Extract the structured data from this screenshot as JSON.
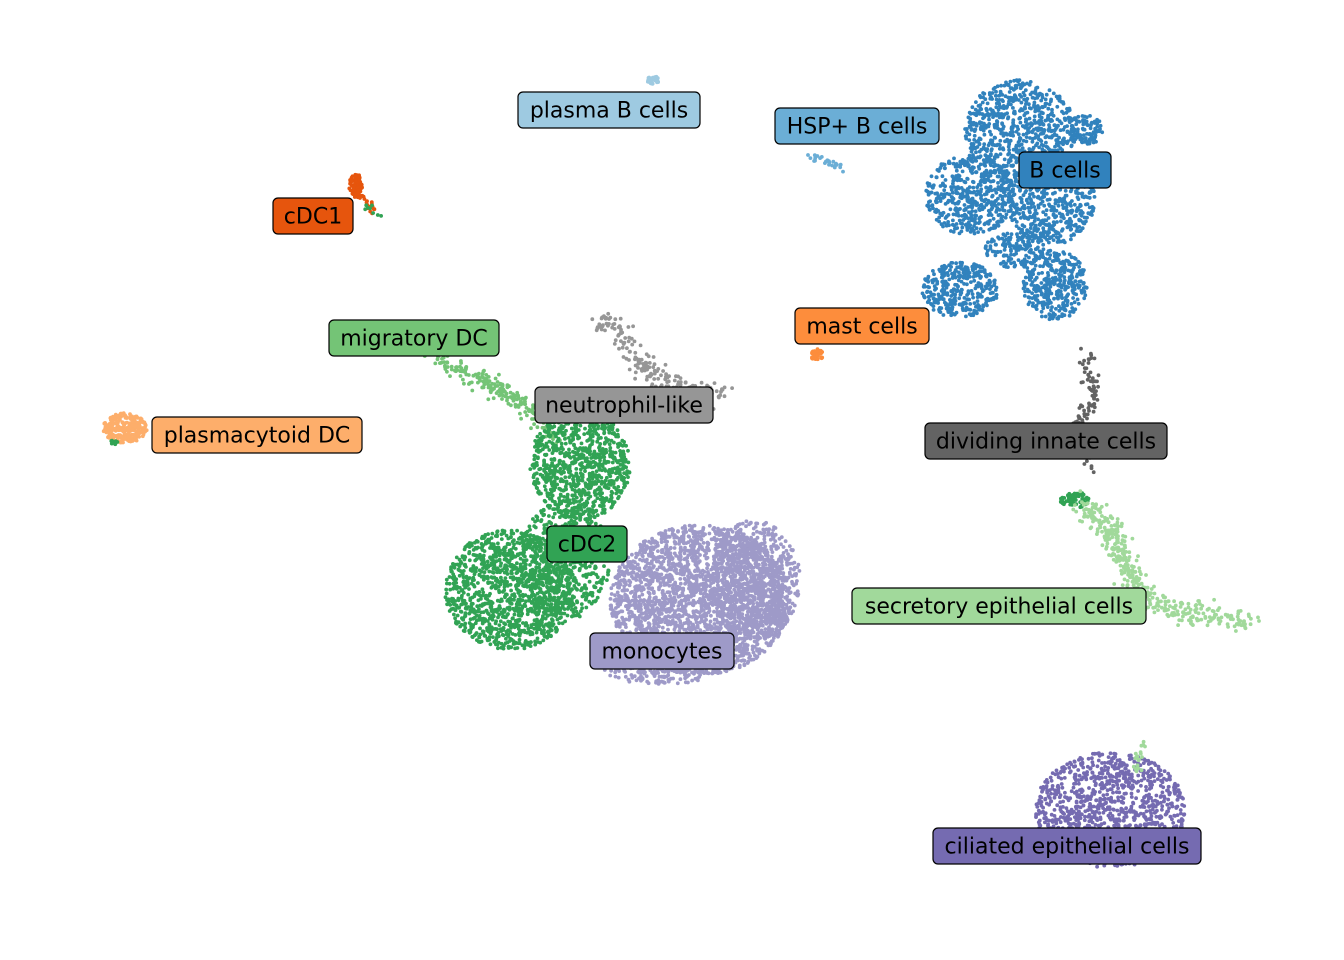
{
  "chart_data": {
    "type": "scatter",
    "title": "",
    "xlabel": "",
    "ylabel": "",
    "axes_visible": false,
    "grid": false,
    "legend": "on data",
    "clusters": [
      {
        "name": "plasma B cells",
        "color": "#9ecae1"
      },
      {
        "name": "HSP+ B cells",
        "color": "#6baed6"
      },
      {
        "name": "B cells",
        "color": "#3182bd"
      },
      {
        "name": "cDC1",
        "color": "#e6550d"
      },
      {
        "name": "mast cells",
        "color": "#fd8d3c"
      },
      {
        "name": "migratory DC",
        "color": "#74c476"
      },
      {
        "name": "neutrophil-like",
        "color": "#969696"
      },
      {
        "name": "plasmacytoid DC",
        "color": "#fdae6b"
      },
      {
        "name": "dividing innate cells",
        "color": "#636363"
      },
      {
        "name": "cDC2",
        "color": "#31a354"
      },
      {
        "name": "secretory epithelial cells",
        "color": "#a1d99b"
      },
      {
        "name": "monocytes",
        "color": "#9e9ac8"
      },
      {
        "name": "ciliated epithelial cells",
        "color": "#756bb1"
      }
    ]
  }
}
